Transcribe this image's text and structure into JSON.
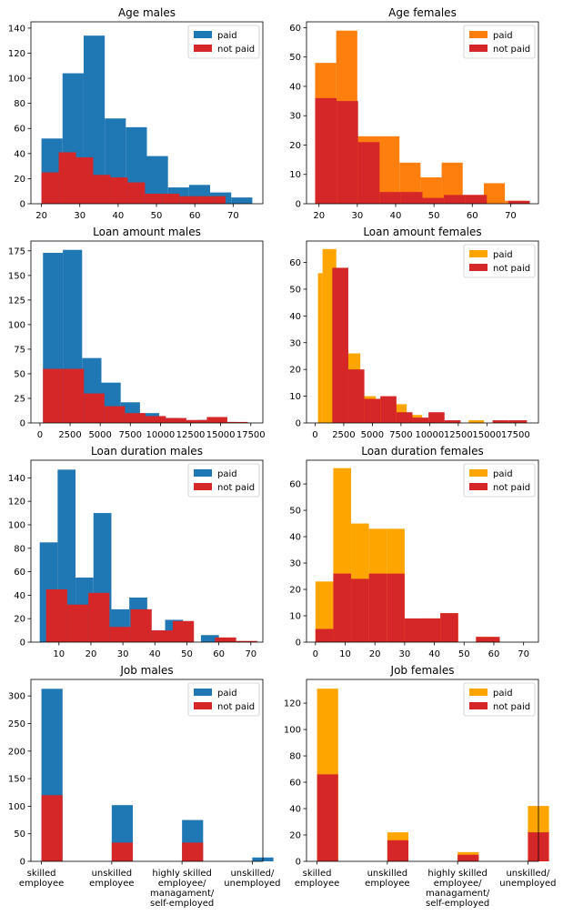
{
  "chart_data": [
    {
      "type": "histogram",
      "title": "Age males",
      "xlim": [
        17.25,
        77.75
      ],
      "ylim": [
        0,
        145
      ],
      "xticks": [
        20,
        30,
        40,
        50,
        60,
        70
      ],
      "yticks": [
        0,
        20,
        40,
        60,
        80,
        100,
        120,
        140
      ],
      "legend": "top-right",
      "series": [
        {
          "name": "paid",
          "color": "#1f77b4",
          "bins": [
            [
              20,
              25.5,
              52
            ],
            [
              25.5,
              31,
              104
            ],
            [
              31,
              36.5,
              134
            ],
            [
              36.5,
              42,
              68
            ],
            [
              42,
              47.5,
              61
            ],
            [
              47.5,
              53,
              38
            ],
            [
              53,
              58.5,
              13
            ],
            [
              58.5,
              64,
              15
            ],
            [
              64,
              69.5,
              9
            ],
            [
              69.5,
              75,
              5
            ]
          ]
        },
        {
          "name": "not paid",
          "color": "#d62728",
          "bins": [
            [
              20,
              24.5,
              25
            ],
            [
              24.5,
              29,
              41
            ],
            [
              29,
              33.5,
              37
            ],
            [
              33.5,
              38,
              23
            ],
            [
              38,
              42.5,
              21
            ],
            [
              42.5,
              47,
              17
            ],
            [
              47,
              51.5,
              8
            ],
            [
              51.5,
              56,
              8
            ],
            [
              56,
              60.5,
              6
            ],
            [
              60.5,
              65,
              6
            ],
            [
              65,
              68,
              6
            ]
          ]
        }
      ]
    },
    {
      "type": "histogram",
      "title": "Age females",
      "xlim": [
        16.75,
        77.25
      ],
      "ylim": [
        0,
        62
      ],
      "xticks": [
        20,
        30,
        40,
        50,
        60,
        70
      ],
      "yticks": [
        0,
        10,
        20,
        30,
        40,
        50,
        60
      ],
      "legend": "top-right",
      "series": [
        {
          "name": "paid",
          "color": "#ff7f0e",
          "bins": [
            [
              19,
              24.5,
              48
            ],
            [
              24.5,
              30,
              59
            ],
            [
              30,
              35.5,
              23
            ],
            [
              35.5,
              41,
              23
            ],
            [
              41,
              46.5,
              14
            ],
            [
              46.5,
              52,
              9
            ],
            [
              52,
              57.5,
              14
            ],
            [
              57.5,
              63,
              3
            ],
            [
              63,
              68.5,
              7
            ],
            [
              68.5,
              74,
              1
            ]
          ]
        },
        {
          "name": "not paid",
          "color": "#d62728",
          "bins": [
            [
              19,
              24.6,
              36
            ],
            [
              24.6,
              30.2,
              35
            ],
            [
              30.2,
              35.8,
              21
            ],
            [
              35.8,
              41.4,
              4
            ],
            [
              41.4,
              47,
              4
            ],
            [
              47,
              52.6,
              2
            ],
            [
              52.6,
              58.2,
              3
            ],
            [
              58.2,
              63.8,
              3
            ],
            [
              63.8,
              69.4,
              0
            ],
            [
              69.4,
              75,
              1
            ]
          ]
        }
      ]
    },
    {
      "type": "histogram",
      "title": "Loan amount males",
      "xlim": [
        -750,
        18500
      ],
      "ylim": [
        0,
        185
      ],
      "xticks": [
        0,
        2500,
        5000,
        7500,
        10000,
        12500,
        15000,
        17500
      ],
      "yticks": [
        0,
        25,
        50,
        75,
        100,
        125,
        150,
        175
      ],
      "legend": "none",
      "series": [
        {
          "name": "paid",
          "color": "#1f77b4",
          "bins": [
            [
              250,
              1900,
              173
            ],
            [
              1900,
              3500,
              176
            ],
            [
              3500,
              5100,
              66
            ],
            [
              5100,
              6700,
              41
            ],
            [
              6700,
              8300,
              21
            ],
            [
              8300,
              9900,
              10
            ],
            [
              9900,
              11500,
              5
            ],
            [
              11500,
              13100,
              2
            ],
            [
              13100,
              14700,
              3
            ],
            [
              14700,
              16300,
              1
            ]
          ]
        },
        {
          "name": "not paid",
          "color": "#d62728",
          "bins": [
            [
              250,
              1950,
              55
            ],
            [
              1950,
              3650,
              55
            ],
            [
              3650,
              5350,
              30
            ],
            [
              5350,
              7050,
              17
            ],
            [
              7050,
              8750,
              10
            ],
            [
              8750,
              10450,
              7
            ],
            [
              10450,
              12150,
              5
            ],
            [
              12150,
              13850,
              3
            ],
            [
              13850,
              15550,
              6
            ],
            [
              15550,
              17250,
              1
            ]
          ]
        }
      ]
    },
    {
      "type": "histogram",
      "title": "Loan amount females",
      "xlim": [
        -750,
        19500
      ],
      "ylim": [
        0,
        68
      ],
      "xticks": [
        0,
        2500,
        5000,
        7500,
        10000,
        12500,
        15000,
        17500
      ],
      "yticks": [
        0,
        10,
        20,
        30,
        40,
        50,
        60
      ],
      "legend": "top-right",
      "series": [
        {
          "name": "paid",
          "color": "#ffa500",
          "bins": [
            [
              250,
              650,
              56
            ],
            [
              650,
              1850,
              65
            ],
            [
              1850,
              2800,
              29
            ],
            [
              2800,
              3950,
              26
            ],
            [
              3950,
              5300,
              10
            ],
            [
              5300,
              6650,
              9
            ],
            [
              6650,
              8000,
              7
            ],
            [
              8000,
              9350,
              3
            ],
            [
              9350,
              10700,
              0
            ],
            [
              10700,
              12050,
              0
            ],
            [
              12050,
              13400,
              0
            ],
            [
              13400,
              14750,
              1
            ],
            [
              14750,
              16100,
              0
            ],
            [
              16100,
              18500,
              0
            ]
          ]
        },
        {
          "name": "not paid",
          "color": "#d62728",
          "bins": [
            [
              250,
              1500,
              0
            ],
            [
              1500,
              2900,
              58
            ],
            [
              2900,
              4300,
              20
            ],
            [
              4300,
              5700,
              9
            ],
            [
              5700,
              7100,
              10
            ],
            [
              7100,
              8500,
              4
            ],
            [
              8500,
              9900,
              2
            ],
            [
              9900,
              11300,
              4
            ],
            [
              11300,
              12700,
              1
            ],
            [
              12700,
              14100,
              0
            ],
            [
              14100,
              15500,
              0
            ],
            [
              15500,
              16900,
              1
            ],
            [
              16900,
              18500,
              1
            ]
          ]
        }
      ]
    },
    {
      "type": "histogram",
      "title": "Loan duration males",
      "xlim": [
        1.25,
        73.75
      ],
      "ylim": [
        0,
        155
      ],
      "xticks": [
        10,
        20,
        30,
        40,
        50,
        60,
        70
      ],
      "yticks": [
        0,
        20,
        40,
        60,
        80,
        100,
        120,
        140
      ],
      "legend": "top-right",
      "series": [
        {
          "name": "paid",
          "color": "#1f77b4",
          "bins": [
            [
              4,
              9.6,
              85
            ],
            [
              9.6,
              15.2,
              147
            ],
            [
              15.2,
              20.8,
              55
            ],
            [
              20.8,
              26.4,
              110
            ],
            [
              26.4,
              32,
              28
            ],
            [
              32,
              37.6,
              38
            ],
            [
              37.6,
              43.2,
              10
            ],
            [
              43.2,
              48.8,
              19
            ],
            [
              48.8,
              54.4,
              0
            ],
            [
              54.4,
              60,
              6
            ]
          ]
        },
        {
          "name": "not paid",
          "color": "#d62728",
          "bins": [
            [
              6,
              12.6,
              45
            ],
            [
              12.6,
              19.2,
              32
            ],
            [
              19.2,
              25.8,
              42
            ],
            [
              25.8,
              32.4,
              13
            ],
            [
              32.4,
              39,
              28
            ],
            [
              39,
              45.6,
              10
            ],
            [
              45.6,
              52.2,
              18
            ],
            [
              52.2,
              58.8,
              0
            ],
            [
              58.8,
              65.4,
              4
            ],
            [
              65.4,
              72,
              1
            ]
          ]
        }
      ]
    },
    {
      "type": "histogram",
      "title": "Loan duration females",
      "xlim": [
        -3,
        75
      ],
      "ylim": [
        0,
        69
      ],
      "xticks": [
        0,
        10,
        20,
        30,
        40,
        50,
        60,
        70
      ],
      "yticks": [
        0,
        10,
        20,
        30,
        40,
        50,
        60
      ],
      "legend": "top-right",
      "series": [
        {
          "name": "paid",
          "color": "#ffa500",
          "bins": [
            [
              0,
              6,
              23
            ],
            [
              6,
              12,
              66
            ],
            [
              12,
              18,
              45
            ],
            [
              18,
              24,
              43
            ],
            [
              24,
              30,
              43
            ],
            [
              30,
              36,
              6
            ],
            [
              36,
              42,
              9
            ],
            [
              42,
              48,
              11
            ],
            [
              48,
              54,
              0
            ],
            [
              54,
              60,
              2
            ]
          ]
        },
        {
          "name": "not paid",
          "color": "#d62728",
          "bins": [
            [
              0,
              6,
              5
            ],
            [
              6,
              12,
              26
            ],
            [
              12,
              18,
              24
            ],
            [
              18,
              24,
              26
            ],
            [
              24,
              30,
              26
            ],
            [
              30,
              36,
              9
            ],
            [
              36,
              42,
              9
            ],
            [
              42,
              48,
              11
            ],
            [
              48,
              54,
              0
            ],
            [
              54,
              62,
              2
            ]
          ]
        }
      ]
    },
    {
      "type": "histogram",
      "title": "Job males",
      "xlim": [
        -0.15,
        3.15
      ],
      "ylim": [
        0,
        330
      ],
      "xticks": [
        0,
        1,
        2,
        3
      ],
      "xticklabels": [
        [
          "skilled",
          "employee"
        ],
        [
          "unskilled",
          "employee"
        ],
        [
          "highly skilled",
          "employee/",
          "managament/",
          "self-employed"
        ],
        [
          "unskilled/",
          "unemployed"
        ]
      ],
      "yticks": [
        0,
        50,
        100,
        150,
        200,
        250,
        300
      ],
      "legend": "top-right",
      "series": [
        {
          "name": "paid",
          "color": "#1f77b4",
          "bins": [
            [
              0,
              0.3,
              313
            ],
            [
              1,
              1.3,
              102
            ],
            [
              2,
              2.3,
              75
            ],
            [
              3,
              3.3,
              7
            ]
          ]
        },
        {
          "name": "not paid",
          "color": "#d62728",
          "bins": [
            [
              0,
              0.3,
              120
            ],
            [
              1,
              1.3,
              34
            ],
            [
              2,
              2.3,
              34
            ],
            [
              3,
              3.3,
              0
            ]
          ]
        }
      ]
    },
    {
      "type": "histogram",
      "title": "Job females",
      "xlim": [
        -0.15,
        3.15
      ],
      "ylim": [
        0,
        138
      ],
      "xticks": [
        0,
        1,
        2,
        3
      ],
      "xticklabels": [
        [
          "skilled",
          "employee"
        ],
        [
          "unskilled",
          "employee"
        ],
        [
          "highly skilled",
          "employee/",
          "managament/",
          "self-employed"
        ],
        [
          "unskilled/",
          "unemployed"
        ]
      ],
      "yticks": [
        0,
        20,
        40,
        60,
        80,
        100,
        120
      ],
      "legend": "top-right",
      "series": [
        {
          "name": "paid",
          "color": "#ffa500",
          "bins": [
            [
              0,
              0.3,
              131
            ],
            [
              1,
              1.3,
              22
            ],
            [
              2,
              2.3,
              7
            ],
            [
              3,
              3.3,
              42
            ]
          ]
        },
        {
          "name": "not paid",
          "color": "#d62728",
          "bins": [
            [
              0,
              0.3,
              66
            ],
            [
              1,
              1.3,
              16
            ],
            [
              2,
              2.3,
              5
            ],
            [
              3,
              3.3,
              22
            ]
          ]
        }
      ]
    }
  ]
}
